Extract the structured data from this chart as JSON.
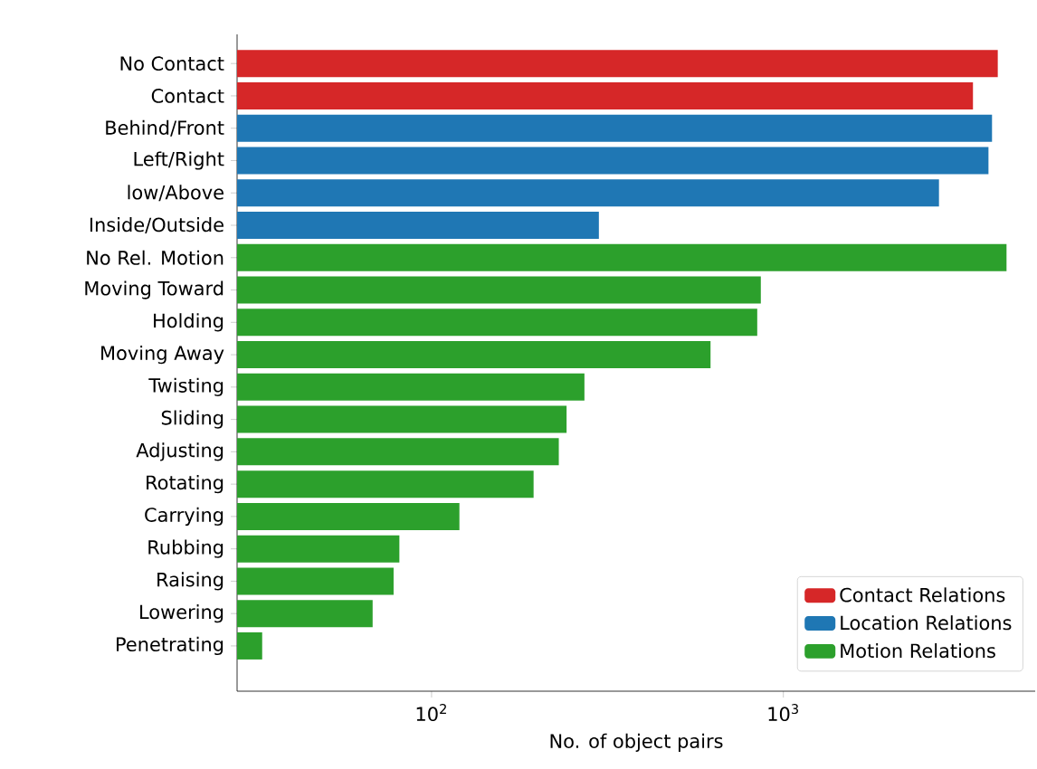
{
  "chart_data": {
    "type": "bar",
    "orientation": "horizontal",
    "log": "x",
    "xlabel": "No. of object pairs",
    "categories": [
      "No Contact",
      "Contact",
      "Behind/Front",
      "Left/Right",
      "low/Above",
      "Inside/Outside",
      "No Rel. Motion",
      "Moving Toward",
      "Holding",
      "Moving Away",
      "Twisting",
      "Sliding",
      "Adjusting",
      "Rotating",
      "Carrying",
      "Rubbing",
      "Raising",
      "Lowering",
      "Penetrating"
    ],
    "series": [
      {
        "name": "Contact Relations",
        "color": "#d62728",
        "values": [
          4070,
          3460,
          null,
          null,
          null,
          null,
          null,
          null,
          null,
          null,
          null,
          null,
          null,
          null,
          null,
          null,
          null,
          null,
          null
        ]
      },
      {
        "name": "Location Relations",
        "color": "#1f77b4",
        "values": [
          null,
          null,
          3920,
          3830,
          2770,
          299,
          null,
          null,
          null,
          null,
          null,
          null,
          null,
          null,
          null,
          null,
          null,
          null,
          null
        ]
      },
      {
        "name": "Motion Relations",
        "color": "#2ca02c",
        "values": [
          null,
          null,
          null,
          null,
          null,
          null,
          4310,
          863,
          843,
          621,
          272,
          242,
          230,
          195,
          120,
          81,
          78,
          68,
          33
        ]
      }
    ],
    "xlim": [
      28,
      5200
    ],
    "xticks": [
      {
        "value": 100,
        "label": "10$^{2}$"
      },
      {
        "value": 1000,
        "label": "10$^{3}$"
      }
    ],
    "grid": false,
    "legend": "bottom right"
  }
}
